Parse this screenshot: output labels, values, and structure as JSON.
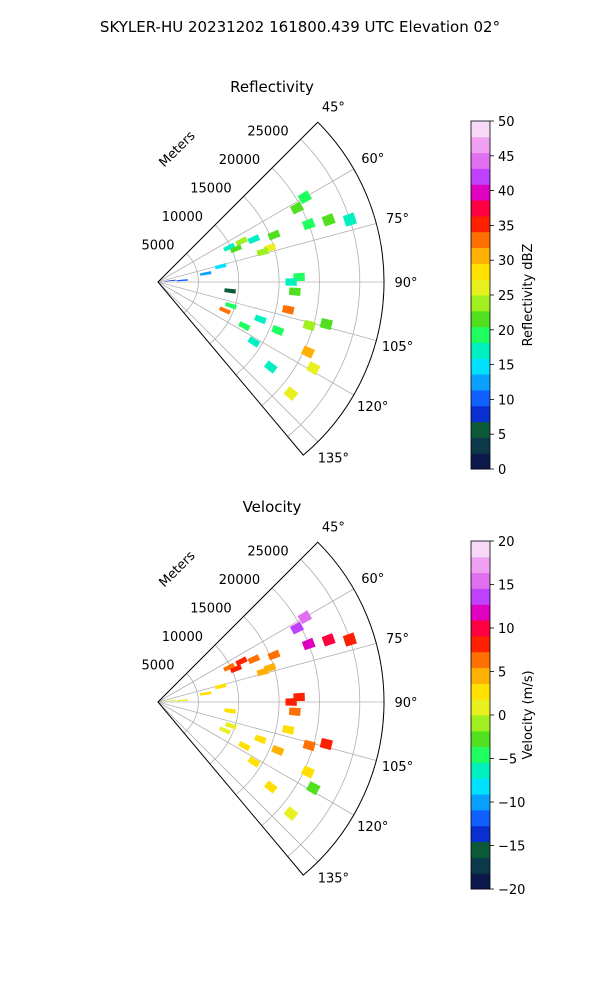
{
  "figure": {
    "suptitle": "SKYLER-HU  20231202  161800.439 UTC Elevation 02°"
  },
  "chart_data": [
    {
      "type": "heatmap",
      "projection": "polar-sector",
      "title": "Reflectivity",
      "range_label": "Meters",
      "range_ticks": [
        5000,
        10000,
        15000,
        20000,
        25000
      ],
      "range_tick_labels": [
        "5000",
        "10000",
        "15000",
        "20000",
        "25000"
      ],
      "range_max": 28000,
      "azimuth_range_deg": [
        45,
        140
      ],
      "azimuth_ticks": [
        45,
        60,
        75,
        90,
        105,
        120,
        135
      ],
      "azimuth_tick_labels": [
        "45°",
        "60°",
        "75°",
        "90°",
        "105°",
        "120°",
        "135°"
      ],
      "grid": true,
      "colorbar": {
        "label": "Reflectivity dBZ",
        "min": 0,
        "max": 50,
        "ticks": [
          0,
          5,
          10,
          15,
          20,
          25,
          30,
          35,
          40,
          45,
          50
        ],
        "tick_labels": [
          "0",
          "5",
          "10",
          "15",
          "20",
          "25",
          "30",
          "35",
          "40",
          "45",
          "50"
        ],
        "colors": [
          "#0b1a4a",
          "#0d3a4a",
          "#0c5a3a",
          "#0a2fd0",
          "#1060ff",
          "#0aa0ff",
          "#00e0ff",
          "#00f0c0",
          "#20ff60",
          "#50e020",
          "#a0f020",
          "#e8f020",
          "#ffe000",
          "#ffb000",
          "#ff7000",
          "#ff2000",
          "#ff0040",
          "#e000c0",
          "#c040ff",
          "#e070f0",
          "#f0a0f0",
          "#f8d8f8"
        ]
      },
      "cells": [
        {
          "az": 60,
          "r": 21000,
          "value": 20
        },
        {
          "az": 62,
          "r": 19500,
          "value": 22
        },
        {
          "az": 64,
          "r": 9800,
          "value": 18
        },
        {
          "az": 64,
          "r": 11500,
          "value": 23
        },
        {
          "az": 66,
          "r": 13000,
          "value": 16
        },
        {
          "az": 67,
          "r": 10500,
          "value": 21
        },
        {
          "az": 68,
          "r": 15500,
          "value": 22
        },
        {
          "az": 69,
          "r": 20000,
          "value": 19
        },
        {
          "az": 70,
          "r": 22500,
          "value": 21
        },
        {
          "az": 72,
          "r": 25000,
          "value": 17
        },
        {
          "az": 73,
          "r": 14500,
          "value": 25
        },
        {
          "az": 74,
          "r": 13500,
          "value": 24
        },
        {
          "az": 76,
          "r": 8000,
          "value": 14
        },
        {
          "az": 80,
          "r": 6000,
          "value": 12
        },
        {
          "az": 84,
          "r": 1500,
          "value": 8
        },
        {
          "az": 86,
          "r": 3000,
          "value": 11
        },
        {
          "az": 88,
          "r": 17500,
          "value": 20
        },
        {
          "az": 90,
          "r": 16500,
          "value": 18
        },
        {
          "az": 94,
          "r": 17000,
          "value": 21
        },
        {
          "az": 97,
          "r": 9000,
          "value": 6
        },
        {
          "az": 102,
          "r": 16500,
          "value": 32
        },
        {
          "az": 104,
          "r": 21500,
          "value": 22
        },
        {
          "az": 106,
          "r": 19500,
          "value": 24
        },
        {
          "az": 108,
          "r": 9500,
          "value": 20
        },
        {
          "az": 110,
          "r": 13500,
          "value": 18
        },
        {
          "az": 112,
          "r": 16000,
          "value": 20
        },
        {
          "az": 113,
          "r": 9000,
          "value": 33
        },
        {
          "az": 115,
          "r": 20500,
          "value": 30
        },
        {
          "az": 117,
          "r": 12000,
          "value": 19
        },
        {
          "az": 119,
          "r": 22000,
          "value": 25
        },
        {
          "az": 122,
          "r": 14000,
          "value": 18
        },
        {
          "az": 127,
          "r": 17500,
          "value": 17
        },
        {
          "az": 130,
          "r": 21500,
          "value": 26
        }
      ]
    },
    {
      "type": "heatmap",
      "projection": "polar-sector",
      "title": "Velocity",
      "range_label": "Meters",
      "range_ticks": [
        5000,
        10000,
        15000,
        20000,
        25000
      ],
      "range_tick_labels": [
        "5000",
        "10000",
        "15000",
        "20000",
        "25000"
      ],
      "range_max": 28000,
      "azimuth_range_deg": [
        45,
        140
      ],
      "azimuth_ticks": [
        45,
        60,
        75,
        90,
        105,
        120,
        135
      ],
      "azimuth_tick_labels": [
        "45°",
        "60°",
        "75°",
        "90°",
        "105°",
        "120°",
        "135°"
      ],
      "grid": true,
      "colorbar": {
        "label": "Velocity (m/s)",
        "min": -20,
        "max": 20,
        "ticks": [
          -20,
          -15,
          -10,
          -5,
          0,
          5,
          10,
          15,
          20
        ],
        "tick_labels": [
          "−20",
          "−15",
          "−10",
          "−5",
          "0",
          "5",
          "10",
          "15",
          "20"
        ],
        "colors": [
          "#0b1a4a",
          "#0d3a4a",
          "#0c5a3a",
          "#0a2fd0",
          "#1060ff",
          "#0aa0ff",
          "#00e0ff",
          "#00f0c0",
          "#20ff60",
          "#50e020",
          "#a0f020",
          "#e8f020",
          "#ffe000",
          "#ffb000",
          "#ff7000",
          "#ff2000",
          "#ff0040",
          "#e000c0",
          "#c040ff",
          "#e070f0",
          "#f0a0f0",
          "#f8d8f8"
        ]
      },
      "cells": [
        {
          "az": 60,
          "r": 21000,
          "value": 15
        },
        {
          "az": 62,
          "r": 19500,
          "value": 14
        },
        {
          "az": 64,
          "r": 9800,
          "value": 7
        },
        {
          "az": 64,
          "r": 11500,
          "value": 8
        },
        {
          "az": 66,
          "r": 13000,
          "value": 6
        },
        {
          "az": 67,
          "r": 10500,
          "value": 9
        },
        {
          "az": 68,
          "r": 15500,
          "value": 6
        },
        {
          "az": 69,
          "r": 20000,
          "value": 11
        },
        {
          "az": 70,
          "r": 22500,
          "value": 10
        },
        {
          "az": 72,
          "r": 25000,
          "value": 9
        },
        {
          "az": 73,
          "r": 14500,
          "value": 5
        },
        {
          "az": 74,
          "r": 13500,
          "value": 4
        },
        {
          "az": 76,
          "r": 8000,
          "value": 3
        },
        {
          "az": 80,
          "r": 6000,
          "value": 2
        },
        {
          "az": 84,
          "r": 1500,
          "value": 0
        },
        {
          "az": 86,
          "r": 3000,
          "value": 1
        },
        {
          "az": 88,
          "r": 17500,
          "value": 8
        },
        {
          "az": 90,
          "r": 16500,
          "value": 9
        },
        {
          "az": 94,
          "r": 17000,
          "value": 7
        },
        {
          "az": 97,
          "r": 9000,
          "value": 2
        },
        {
          "az": 102,
          "r": 16500,
          "value": 3
        },
        {
          "az": 104,
          "r": 21500,
          "value": 8
        },
        {
          "az": 106,
          "r": 19500,
          "value": 6
        },
        {
          "az": 108,
          "r": 9500,
          "value": 1
        },
        {
          "az": 110,
          "r": 13500,
          "value": 2
        },
        {
          "az": 112,
          "r": 16000,
          "value": 4
        },
        {
          "az": 113,
          "r": 9000,
          "value": 1
        },
        {
          "az": 115,
          "r": 20500,
          "value": 3
        },
        {
          "az": 117,
          "r": 12000,
          "value": 2
        },
        {
          "az": 119,
          "r": 22000,
          "value": -2
        },
        {
          "az": 122,
          "r": 14000,
          "value": 3
        },
        {
          "az": 127,
          "r": 17500,
          "value": 2
        },
        {
          "az": 130,
          "r": 21500,
          "value": 0
        }
      ]
    }
  ]
}
